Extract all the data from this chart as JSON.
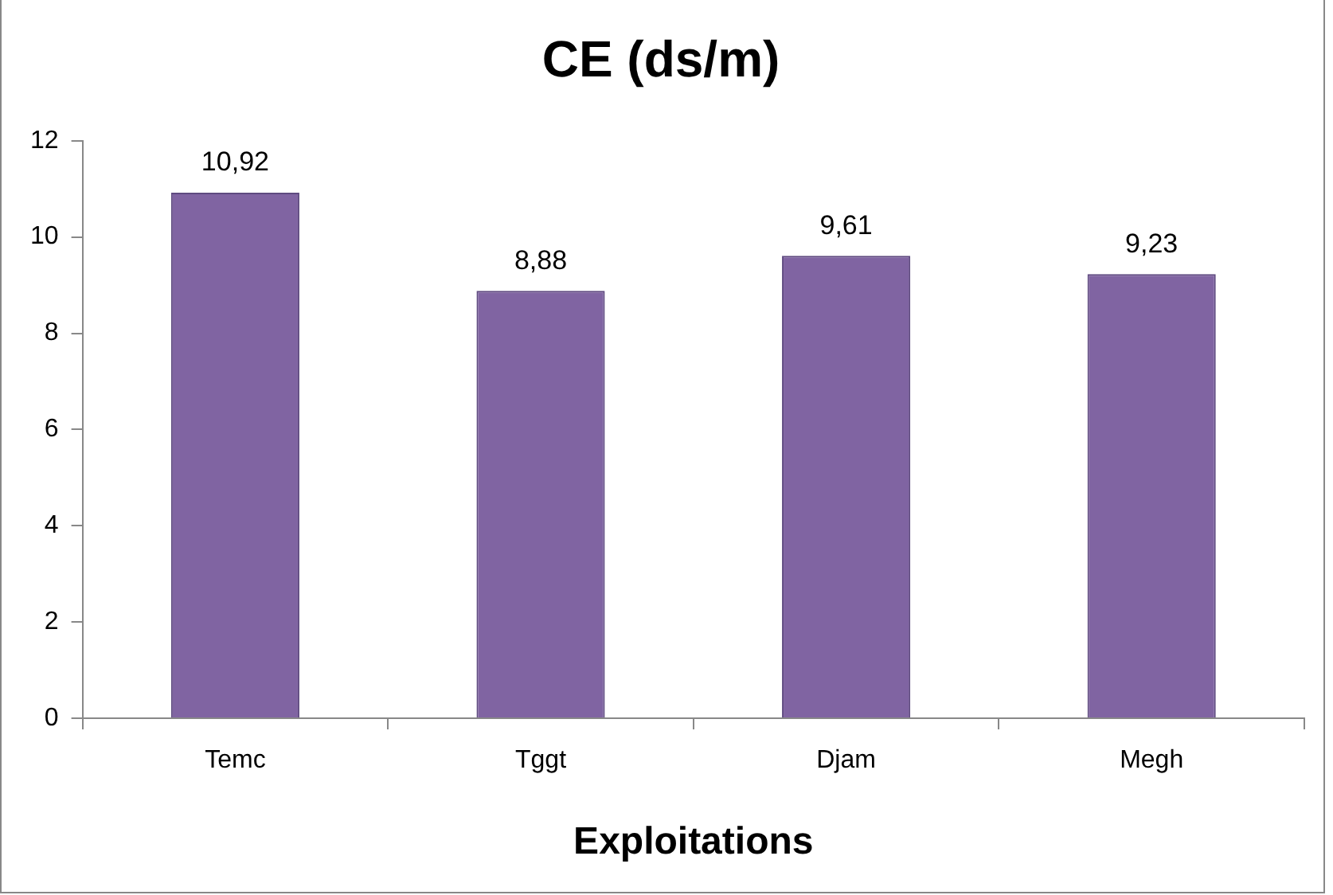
{
  "chart_data": {
    "type": "bar",
    "title": "CE (ds/m)",
    "xlabel": "Exploitations",
    "categories": [
      "Temc",
      "Tggt",
      "Djam",
      "Megh"
    ],
    "values": [
      10.92,
      8.88,
      9.61,
      9.23
    ],
    "value_labels": [
      "10,92",
      "8,88",
      "9,61",
      "9,23"
    ],
    "color": "#8064a2",
    "ylim": [
      0,
      12
    ],
    "yticks": [
      0,
      2,
      4,
      6,
      8,
      10,
      12
    ],
    "grid": false,
    "legend": false
  }
}
